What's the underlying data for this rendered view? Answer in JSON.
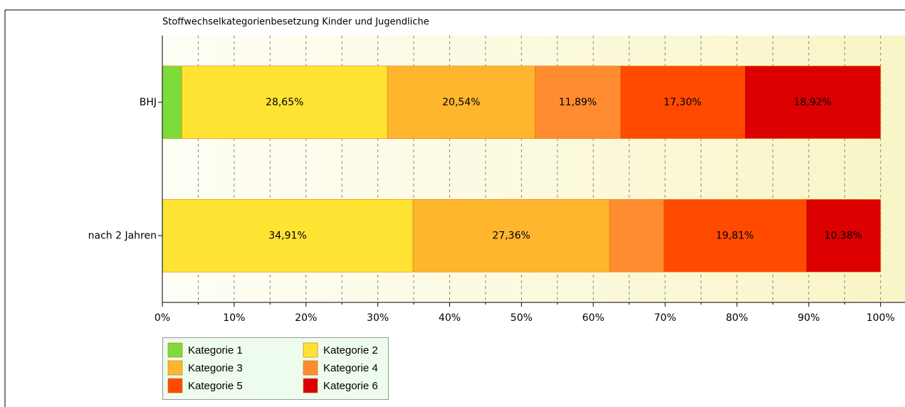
{
  "chart_data": {
    "type": "stacked_bar_horizontal",
    "title": "Stoffwechselkategorienbesetzung Kinder und Jugendliche",
    "categories": [
      "BHJ",
      "nach 2 Jahren"
    ],
    "series": [
      {
        "name": "Kategorie 1",
        "color": "#7ddc3a",
        "values": [
          2.7,
          0
        ],
        "value_labels": [
          null,
          null
        ]
      },
      {
        "name": "Kategorie 2",
        "color": "#ffe433",
        "values": [
          28.65,
          34.91
        ],
        "value_labels": [
          "28,65%",
          "34,91%"
        ]
      },
      {
        "name": "Kategorie 3",
        "color": "#ffb52e",
        "values": [
          20.54,
          27.36
        ],
        "value_labels": [
          "20,54%",
          "27,36%"
        ]
      },
      {
        "name": "Kategorie 4",
        "color": "#ff8c30",
        "values": [
          11.89,
          7.54
        ],
        "value_labels": [
          "11,89%",
          null
        ]
      },
      {
        "name": "Kategorie 5",
        "color": "#ff4a00",
        "values": [
          17.3,
          19.81
        ],
        "value_labels": [
          "17,30%",
          "19,81%"
        ]
      },
      {
        "name": "Kategorie 6",
        "color": "#dd0000",
        "values": [
          18.92,
          10.38
        ],
        "value_labels": [
          "18,92%",
          "10,38%"
        ]
      }
    ],
    "xlim": [
      0,
      103.4
    ],
    "xticks": [
      {
        "value": 0,
        "label": "0%"
      },
      {
        "value": 10,
        "label": "10%"
      },
      {
        "value": 20,
        "label": "20%"
      },
      {
        "value": 30,
        "label": "30%"
      },
      {
        "value": 40,
        "label": "40%"
      },
      {
        "value": 50,
        "label": "50%"
      },
      {
        "value": 60,
        "label": "60%"
      },
      {
        "value": 70,
        "label": "70%"
      },
      {
        "value": 80,
        "label": "80%"
      },
      {
        "value": 90,
        "label": "90%"
      },
      {
        "value": 100,
        "label": "100%"
      }
    ],
    "xminorticks": [
      5,
      15,
      25,
      35,
      45,
      55,
      65,
      75,
      85,
      95
    ],
    "grid": true,
    "legend": "bottom-left"
  }
}
